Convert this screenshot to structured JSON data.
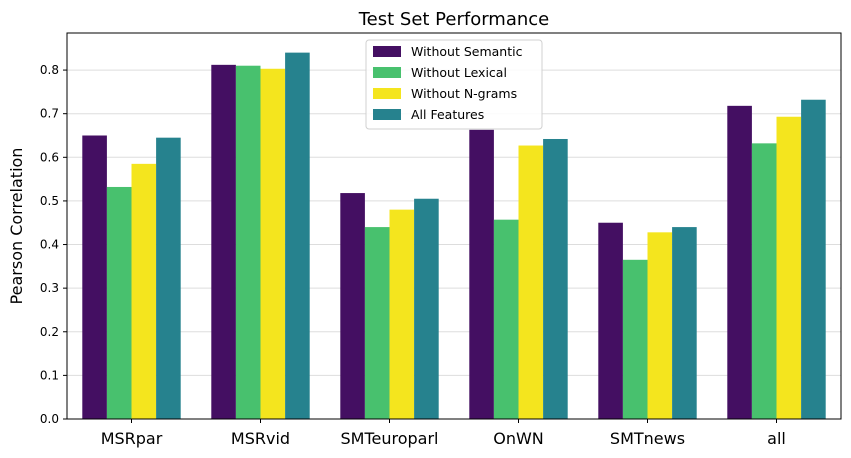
{
  "chart_data": {
    "type": "bar",
    "title": "Test Set Performance",
    "xlabel": "",
    "ylabel": "Pearson Correlation",
    "ylim": [
      0,
      0.885
    ],
    "yticks": [
      "0.0",
      "0.1",
      "0.2",
      "0.3",
      "0.4",
      "0.5",
      "0.6",
      "0.7",
      "0.8"
    ],
    "grid": "y",
    "legend_position": "top-center",
    "categories": [
      "MSRpar",
      "MSRvid",
      "SMTeuroparl",
      "OnWN",
      "SMTnews",
      "all"
    ],
    "series": [
      {
        "name": "Without Semantic",
        "color": "#440f62",
        "values": [
          0.65,
          0.812,
          0.518,
          0.663,
          0.45,
          0.718
        ]
      },
      {
        "name": "Without Lexical",
        "color": "#48c16e",
        "values": [
          0.532,
          0.81,
          0.44,
          0.457,
          0.365,
          0.632
        ]
      },
      {
        "name": "Without N-grams",
        "color": "#f4e51e",
        "values": [
          0.585,
          0.803,
          0.48,
          0.627,
          0.428,
          0.693
        ]
      },
      {
        "name": "All Features",
        "color": "#26828e",
        "values": [
          0.645,
          0.84,
          0.505,
          0.642,
          0.44,
          0.732
        ]
      }
    ]
  }
}
